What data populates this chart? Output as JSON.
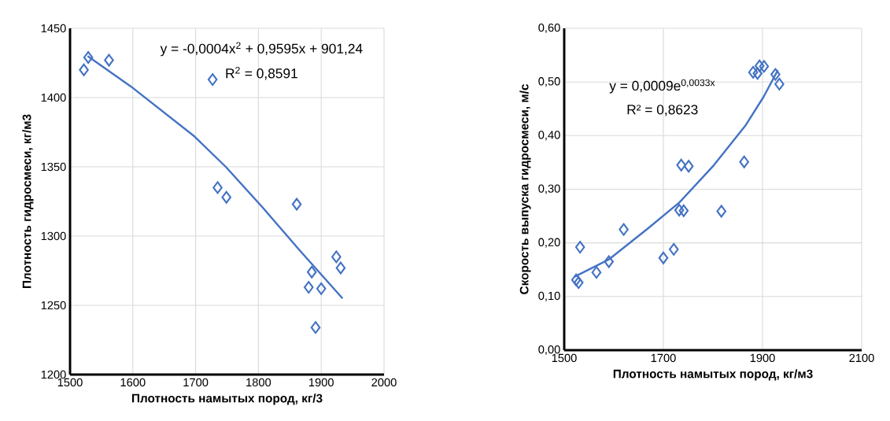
{
  "chart_data": [
    {
      "type": "scatter",
      "xlabel": "Плотность намытых пород, кг/3",
      "ylabel": "Плотность гидросмеси, кг/м3",
      "xlim": [
        1500,
        2000
      ],
      "ylim": [
        1200,
        1450
      ],
      "xticks": [
        1500,
        1600,
        1700,
        1800,
        1900,
        2000
      ],
      "yticks": [
        1200,
        1250,
        1300,
        1350,
        1400,
        1450
      ],
      "grid": true,
      "annotations": [
        "y = -0,0004x$^{2}$ + 0,9595x + 901,24",
        "R$^{2}$ = 0,8591"
      ],
      "series": [
        {
          "marker": "diamond",
          "color": "#4472c4",
          "x": [
            1522,
            1529,
            1562,
            1727,
            1735,
            1749,
            1861,
            1885,
            1880,
            1900,
            1891,
            1924,
            1931
          ],
          "values": [
            1420,
            1429,
            1427,
            1413,
            1335,
            1328,
            1323,
            1274,
            1263,
            1262,
            1234,
            1285,
            1277
          ]
        },
        {
          "type": "line",
          "marker": "none",
          "color": "#4472c4",
          "x": [
            1528,
            1597,
            1698,
            1748,
            1806,
            1865,
            1934
          ],
          "values": [
            1430,
            1408,
            1372,
            1350,
            1321,
            1290,
            1255
          ]
        }
      ]
    },
    {
      "type": "scatter",
      "xlabel": "Плотность намытых пород, кг/м3",
      "ylabel": "Скорость выпуска гидросмеси, м/с",
      "xlim": [
        1500,
        2100
      ],
      "ylim": [
        0,
        0.6
      ],
      "xticks": [
        1500,
        1700,
        1900,
        2100
      ],
      "yticks": [
        {
          "value": 0,
          "label": "0,00"
        },
        {
          "value": 0.1,
          "label": "0,10"
        },
        {
          "value": 0.2,
          "label": "0,20"
        },
        {
          "value": 0.3,
          "label": "0,30"
        },
        {
          "value": 0.4,
          "label": "0,40"
        },
        {
          "value": 0.5,
          "label": "0,50"
        },
        {
          "value": 0.6,
          "label": "0,60"
        }
      ],
      "grid": true,
      "annotations": [
        "y = 0,0009e$^{0,0033x}$",
        "R² = 0,8623"
      ],
      "series": [
        {
          "marker": "diamond",
          "color": "#4472c4",
          "x": [
            1524,
            1529,
            1532,
            1565,
            1590,
            1620,
            1700,
            1721,
            1732,
            1741,
            1736,
            1751,
            1817,
            1863,
            1881,
            1890,
            1894,
            1903,
            1926,
            1934
          ],
          "values": [
            0.131,
            0.126,
            0.192,
            0.145,
            0.165,
            0.225,
            0.172,
            0.188,
            0.261,
            0.26,
            0.345,
            0.343,
            0.259,
            0.351,
            0.518,
            0.516,
            0.53,
            0.529,
            0.514,
            0.496
          ]
        },
        {
          "type": "line",
          "marker": "none",
          "color": "#4472c4",
          "x": [
            1521,
            1590,
            1669,
            1733,
            1802,
            1865,
            1902,
            1931
          ],
          "values": [
            0.137,
            0.169,
            0.227,
            0.276,
            0.345,
            0.418,
            0.472,
            0.522
          ]
        }
      ]
    }
  ]
}
